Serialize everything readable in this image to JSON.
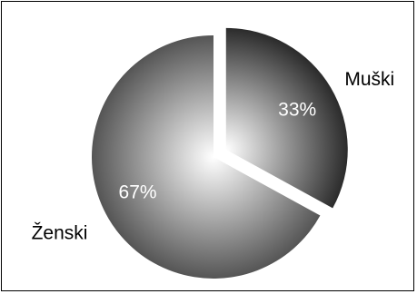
{
  "chart_data": {
    "type": "pie",
    "slices": [
      {
        "label": "Muški",
        "value": 33,
        "value_label": "33%",
        "exploded": true,
        "gradient_dark": "#2b2b2b"
      },
      {
        "label": "Ženski",
        "value": 67,
        "value_label": "67%",
        "exploded": false,
        "gradient_dark": "#555555"
      }
    ],
    "gradient_light": "#ffffff",
    "border_color": "#000000"
  }
}
